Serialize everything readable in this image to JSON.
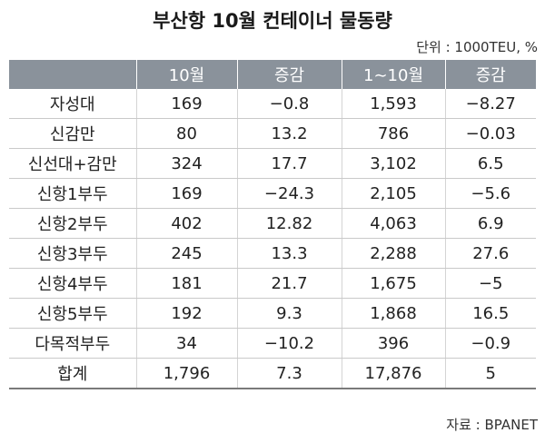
{
  "title": "부산항 10월 컨테이너 물동량",
  "unit": "단위 : 1000TEU, %",
  "source": "자료 : BPANET",
  "columns": [
    "",
    "10월",
    "증감",
    "1∼10월",
    "증감"
  ],
  "rows": [
    [
      "자성대",
      "169",
      "−0.8",
      "1,593",
      "−8.27"
    ],
    [
      "신감만",
      "80",
      "13.2",
      "786",
      "−0.03"
    ],
    [
      "신선대+감만",
      "324",
      "17.7",
      "3,102",
      "6.5"
    ],
    [
      "신항1부두",
      "169",
      "−24.3",
      "2,105",
      "−5.6"
    ],
    [
      "신항2부두",
      "402",
      "12.82",
      "4,063",
      "6.9"
    ],
    [
      "신항3부두",
      "245",
      "13.3",
      "2,288",
      "27.6"
    ],
    [
      "신항4부두",
      "181",
      "21.7",
      "1,675",
      "−5"
    ],
    [
      "신항5부두",
      "192",
      "9.3",
      "1,868",
      "16.5"
    ],
    [
      "다목적부두",
      "34",
      "−10.2",
      "396",
      "−0.9"
    ],
    [
      "합계",
      "1,796",
      "7.3",
      "17,876",
      "5"
    ]
  ]
}
